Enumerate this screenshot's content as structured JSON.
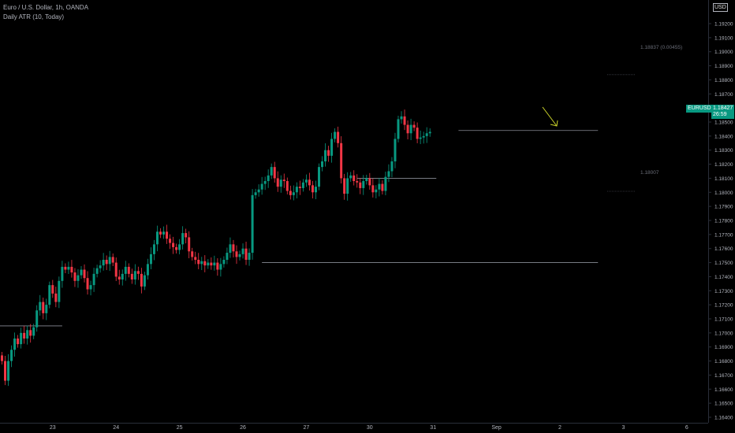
{
  "header": {
    "symbol_title": "Euro / U.S. Dollar, 1h, OANDA",
    "indicator": "Daily ATR (10, Today)"
  },
  "currency": "USD",
  "price_tag": {
    "symbol": "EURUSD",
    "price": "1.18427",
    "countdown": "26:59"
  },
  "atr_labels": [
    {
      "text": "1.18837 (0.00455)",
      "value": 1.18837
    },
    {
      "text": "1.18007",
      "value": 1.18007
    }
  ],
  "colors": {
    "up": "#089981",
    "down": "#f23645",
    "background": "#000000",
    "axis_text": "#b2b5be",
    "arrow": "#c9d12a"
  },
  "chart_data": {
    "type": "candlestick",
    "title": "Euro / U.S. Dollar, 1h, OANDA",
    "ylim": [
      1.1635,
      1.1965
    ],
    "y_ticks": [
      "1.16400",
      "1.16500",
      "1.16600",
      "1.16700",
      "1.16800",
      "1.16900",
      "1.17000",
      "1.17100",
      "1.17200",
      "1.17300",
      "1.17400",
      "1.17500",
      "1.17600",
      "1.17700",
      "1.17800",
      "1.17900",
      "1.18000",
      "1.18100",
      "1.18200",
      "1.18300",
      "1.18400",
      "1.18500",
      "1.18600",
      "1.18700",
      "1.18800",
      "1.18900",
      "1.19000",
      "1.19100",
      "1.19200"
    ],
    "x_ticks": [
      {
        "label": "23",
        "bar": 15
      },
      {
        "label": "24",
        "bar": 35
      },
      {
        "label": "25",
        "bar": 55
      },
      {
        "label": "26",
        "bar": 75
      },
      {
        "label": "27",
        "bar": 95
      },
      {
        "label": "30",
        "bar": 115
      },
      {
        "label": "31",
        "bar": 135
      },
      {
        "label": "Sep",
        "bar": 155
      },
      {
        "label": "2",
        "bar": 175
      },
      {
        "label": "3",
        "bar": 195
      },
      {
        "label": "6",
        "bar": 215
      }
    ],
    "closes": [
      1.168,
      1.1666,
      1.168,
      1.1688,
      1.1696,
      1.1692,
      1.17,
      1.1696,
      1.1702,
      1.1698,
      1.1704,
      1.1716,
      1.1722,
      1.1714,
      1.172,
      1.1734,
      1.1728,
      1.1722,
      1.1737,
      1.1747,
      1.1745,
      1.1747,
      1.1743,
      1.1737,
      1.1741,
      1.1745,
      1.1739,
      1.1731,
      1.1734,
      1.1742,
      1.1746,
      1.1748,
      1.1752,
      1.1749,
      1.1754,
      1.175,
      1.174,
      1.1738,
      1.1742,
      1.1747,
      1.1742,
      1.1738,
      1.1744,
      1.1742,
      1.1733,
      1.1741,
      1.1749,
      1.1756,
      1.1763,
      1.1772,
      1.177,
      1.1772,
      1.1767,
      1.1764,
      1.1761,
      1.1759,
      1.1763,
      1.1771,
      1.1768,
      1.1758,
      1.1754,
      1.1752,
      1.1749,
      1.1751,
      1.1748,
      1.175,
      1.1748,
      1.175,
      1.1745,
      1.1749,
      1.1752,
      1.1757,
      1.1763,
      1.1758,
      1.1754,
      1.1756,
      1.176,
      1.1752,
      1.1757,
      1.1798,
      1.18,
      1.1802,
      1.1806,
      1.1808,
      1.1812,
      1.1818,
      1.181,
      1.1804,
      1.1809,
      1.1808,
      1.1801,
      1.1798,
      1.18,
      1.1804,
      1.1803,
      1.1807,
      1.1809,
      1.1805,
      1.18,
      1.1804,
      1.1818,
      1.1822,
      1.183,
      1.1826,
      1.1838,
      1.1843,
      1.1835,
      1.181,
      1.1799,
      1.181,
      1.1812,
      1.1808,
      1.1807,
      1.1803,
      1.1808,
      1.181,
      1.1805,
      1.18,
      1.1802,
      1.1806,
      1.1801,
      1.1811,
      1.1815,
      1.1822,
      1.1838,
      1.1852,
      1.1854,
      1.1848,
      1.1842,
      1.1848,
      1.1846,
      1.1838,
      1.1839,
      1.184,
      1.1842,
      1.1843
    ],
    "support_resistance": [
      {
        "from_bar": -2,
        "to_bar": 19,
        "value": 1.1705
      },
      {
        "from_bar": 82,
        "to_bar": 188,
        "value": 1.175
      },
      {
        "from_bar": 112,
        "to_bar": 137,
        "value": 1.181
      },
      {
        "from_bar": 144,
        "to_bar": 188,
        "value": 1.1844
      }
    ],
    "current_price": 1.18427
  }
}
